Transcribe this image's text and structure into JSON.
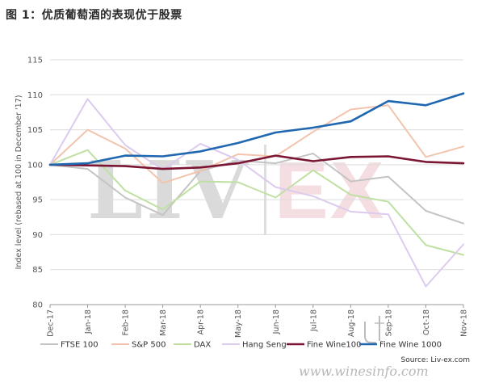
{
  "figure_title": "图 1：优质葡萄酒的表现优于股票",
  "source_text": "Source: Liv-ex.com",
  "watermark": {
    "brand_left": "LIV",
    "brand_right": "EX",
    "site": "www.winesinfo.com"
  },
  "chart_data": {
    "type": "line",
    "title": "",
    "xlabel": "",
    "ylabel": "Index level (rebased at 100 in December '17)",
    "ylim": [
      80,
      115
    ],
    "yticks": [
      80,
      85,
      90,
      95,
      100,
      105,
      110,
      115
    ],
    "grid": true,
    "legend_position": "bottom",
    "categories": [
      "Dec-17",
      "Jan-18",
      "Feb-18",
      "Mar-18",
      "Apr-18",
      "May-18",
      "Jun-18",
      "Jul-18",
      "Aug-18",
      "Sep-18",
      "Oct-18",
      "Nov-18"
    ],
    "series": [
      {
        "name": "FTSE 100",
        "color": "#c4c4c4",
        "width": 2,
        "values": [
          100,
          99.4,
          95.3,
          92.8,
          99.1,
          100.6,
          100.2,
          101.6,
          97.6,
          98.3,
          93.4,
          91.6
        ]
      },
      {
        "name": "S&P 500",
        "color": "#f2c4ad",
        "width": 2,
        "values": [
          100,
          105,
          102.3,
          97.4,
          99.1,
          101.5,
          101.2,
          104.7,
          107.9,
          108.5,
          101.1,
          102.6
        ]
      },
      {
        "name": "DAX",
        "color": "#bfe0a3",
        "width": 2,
        "values": [
          100,
          102.1,
          96.3,
          93.6,
          97.6,
          97.5,
          95.3,
          99.2,
          95.7,
          94.7,
          88.5,
          87.1
        ]
      },
      {
        "name": "Hang Seng",
        "color": "#dccbee",
        "width": 2,
        "values": [
          100,
          109.4,
          102.8,
          99.3,
          103,
          100.7,
          96.8,
          95.5,
          93.3,
          92.9,
          82.6,
          88.6
        ]
      },
      {
        "name": "Fine Wine100",
        "color": "#7a1633",
        "width": 2.6,
        "values": [
          100,
          99.9,
          99.8,
          99.4,
          99.6,
          100.2,
          101.3,
          100.5,
          101.1,
          101.2,
          100.4,
          100.2
        ]
      },
      {
        "name": "Fine Wine 1000",
        "color": "#1f67b1",
        "width": 2.6,
        "values": [
          100,
          100.2,
          101.3,
          101.2,
          101.9,
          103.1,
          104.6,
          105.3,
          106.2,
          109.1,
          108.5,
          110.2
        ]
      }
    ]
  }
}
